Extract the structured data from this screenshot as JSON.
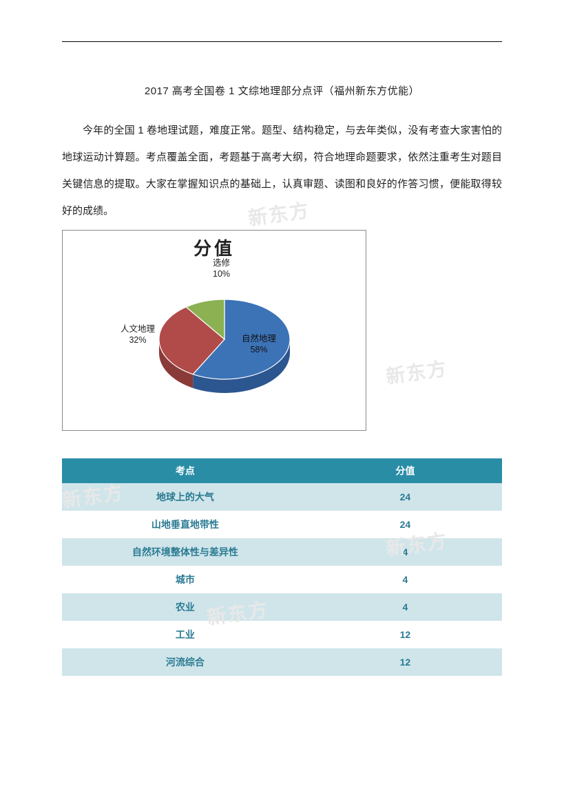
{
  "title": "2017 高考全国卷 1 文综地理部分点评（福州新东方优能）",
  "paragraph": "今年的全国 1 卷地理试题，难度正常。题型、结构稳定，与去年类似，没有考查大家害怕的地球运动计算题。考点覆盖全面，考题基于高考大纲，符合地理命题要求，依然注重考生对题目关键信息的提取。大家在掌握知识点的基础上，认真审题、读图和良好的作答习惯，便能取得较好的成绩。",
  "watermark_text": "新东方",
  "chart": {
    "type": "pie-3d",
    "title": "分值",
    "title_fontsize": 26,
    "background_color": "#ffffff",
    "border_color": "#888888",
    "slices": [
      {
        "label": "自然地理",
        "pct": 58,
        "color": "#3c73b7",
        "side_color": "#2c5690",
        "label_inside": true
      },
      {
        "label": "人文地理",
        "pct": 32,
        "color": "#b04b49",
        "side_color": "#8a3a38",
        "label_inside": false
      },
      {
        "label": "选修",
        "pct": 10,
        "color": "#8bb153",
        "side_color": "#6b8b3e",
        "label_inside": false
      }
    ],
    "label_fontsize": 12.5,
    "label_color": "#222222"
  },
  "table": {
    "header_bg": "#2a8da6",
    "header_fg": "#ffffff",
    "row_odd_bg": "#cfe5ea",
    "row_even_bg": "#ffffff",
    "cell_fg": "#2a7a92",
    "columns": [
      "考点",
      "分值"
    ],
    "rows": [
      [
        "地球上的大气",
        "24"
      ],
      [
        "山地垂直地带性",
        "24"
      ],
      [
        "自然环境整体性与差异性",
        "4"
      ],
      [
        "城市",
        "4"
      ],
      [
        "农业",
        "4"
      ],
      [
        "工业",
        "12"
      ],
      [
        "河流综合",
        "12"
      ]
    ]
  }
}
